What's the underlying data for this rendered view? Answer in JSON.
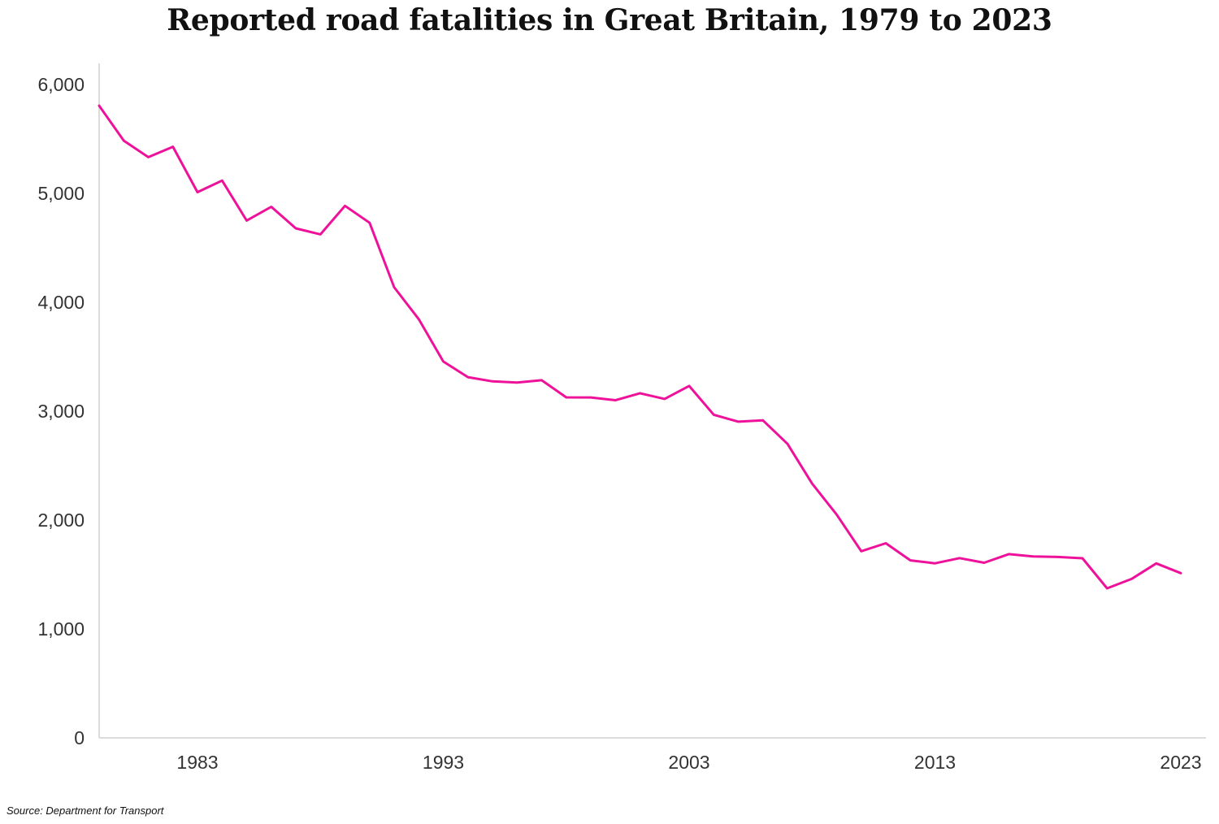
{
  "colors": {
    "line": "#ee1199",
    "axis": "#d0d0d0",
    "text": "#333333"
  },
  "source": "Source:  Department for Transport",
  "chart_data": {
    "type": "line",
    "title": "Reported road fatalities in Great Britain, 1979 to 2023",
    "xlabel": "",
    "ylabel": "",
    "x": [
      1979,
      1980,
      1981,
      1982,
      1983,
      1984,
      1985,
      1986,
      1987,
      1988,
      1989,
      1990,
      1991,
      1992,
      1993,
      1994,
      1995,
      1996,
      1997,
      1998,
      1999,
      2000,
      2001,
      2002,
      2003,
      2004,
      2005,
      2006,
      2007,
      2008,
      2009,
      2010,
      2011,
      2012,
      2013,
      2014,
      2015,
      2016,
      2017,
      2018,
      2019,
      2020,
      2021,
      2022,
      2023
    ],
    "series": [
      {
        "name": "",
        "values": [
          5805,
          5484,
          5333,
          5428,
          5011,
          5118,
          4751,
          4877,
          4679,
          4624,
          4886,
          4730,
          4138,
          3845,
          3456,
          3313,
          3274,
          3263,
          3284,
          3127,
          3126,
          3101,
          3165,
          3113,
          3232,
          2967,
          2904,
          2916,
          2700,
          2335,
          2051,
          1714,
          1787,
          1630,
          1603,
          1651,
          1608,
          1687,
          1666,
          1661,
          1649,
          1373,
          1460,
          1602,
          1513
        ]
      }
    ],
    "xlim": [
      1979,
      2023
    ],
    "ylim": [
      0,
      6000
    ],
    "x_ticks": [
      1983,
      1993,
      2003,
      2013,
      2023
    ],
    "x_tick_labels": [
      "1983",
      "1993",
      "2003",
      "2013",
      "2023"
    ],
    "y_ticks": [
      0,
      1000,
      2000,
      3000,
      4000,
      5000,
      6000
    ],
    "y_tick_labels": [
      "0",
      "1,000",
      "2,000",
      "3,000",
      "4,000",
      "5,000",
      "6,000"
    ],
    "grid": false,
    "legend": "none"
  }
}
